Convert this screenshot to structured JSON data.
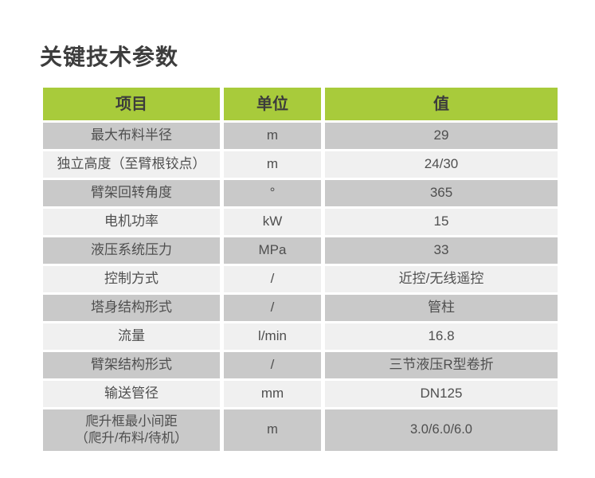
{
  "page": {
    "title": "关键技术参数"
  },
  "table": {
    "headers": [
      "项目",
      "单位",
      "值"
    ],
    "rows": [
      {
        "item": "最大布料半径",
        "unit": "m",
        "value": "29"
      },
      {
        "item": "独立高度（至臂根铰点）",
        "unit": "m",
        "value": "24/30"
      },
      {
        "item": "臂架回转角度",
        "unit": "°",
        "value": "365"
      },
      {
        "item": "电机功率",
        "unit": "kW",
        "value": "15"
      },
      {
        "item": "液压系统压力",
        "unit": "MPa",
        "value": "33"
      },
      {
        "item": "控制方式",
        "unit": "/",
        "value": "近控/无线遥控"
      },
      {
        "item": "塔身结构形式",
        "unit": "/",
        "value": "管柱"
      },
      {
        "item": "流量",
        "unit": "l/min",
        "value": "16.8"
      },
      {
        "item": "臂架结构形式",
        "unit": "/",
        "value": "三节液压R型卷折"
      },
      {
        "item": "输送管径",
        "unit": "mm",
        "value": "DN125"
      },
      {
        "item": "爬升框最小间距\n（爬升/布料/待机）",
        "unit": "m",
        "value": "3.0/6.0/6.0"
      }
    ],
    "colors": {
      "header_bg": "#a8cb3b",
      "row_gray": "#c9c9c9",
      "row_light": "#f0f0f0",
      "header_text": "#3c3c3c",
      "cell_text": "#4f4f4f",
      "title_text": "#3d3d3d"
    }
  }
}
